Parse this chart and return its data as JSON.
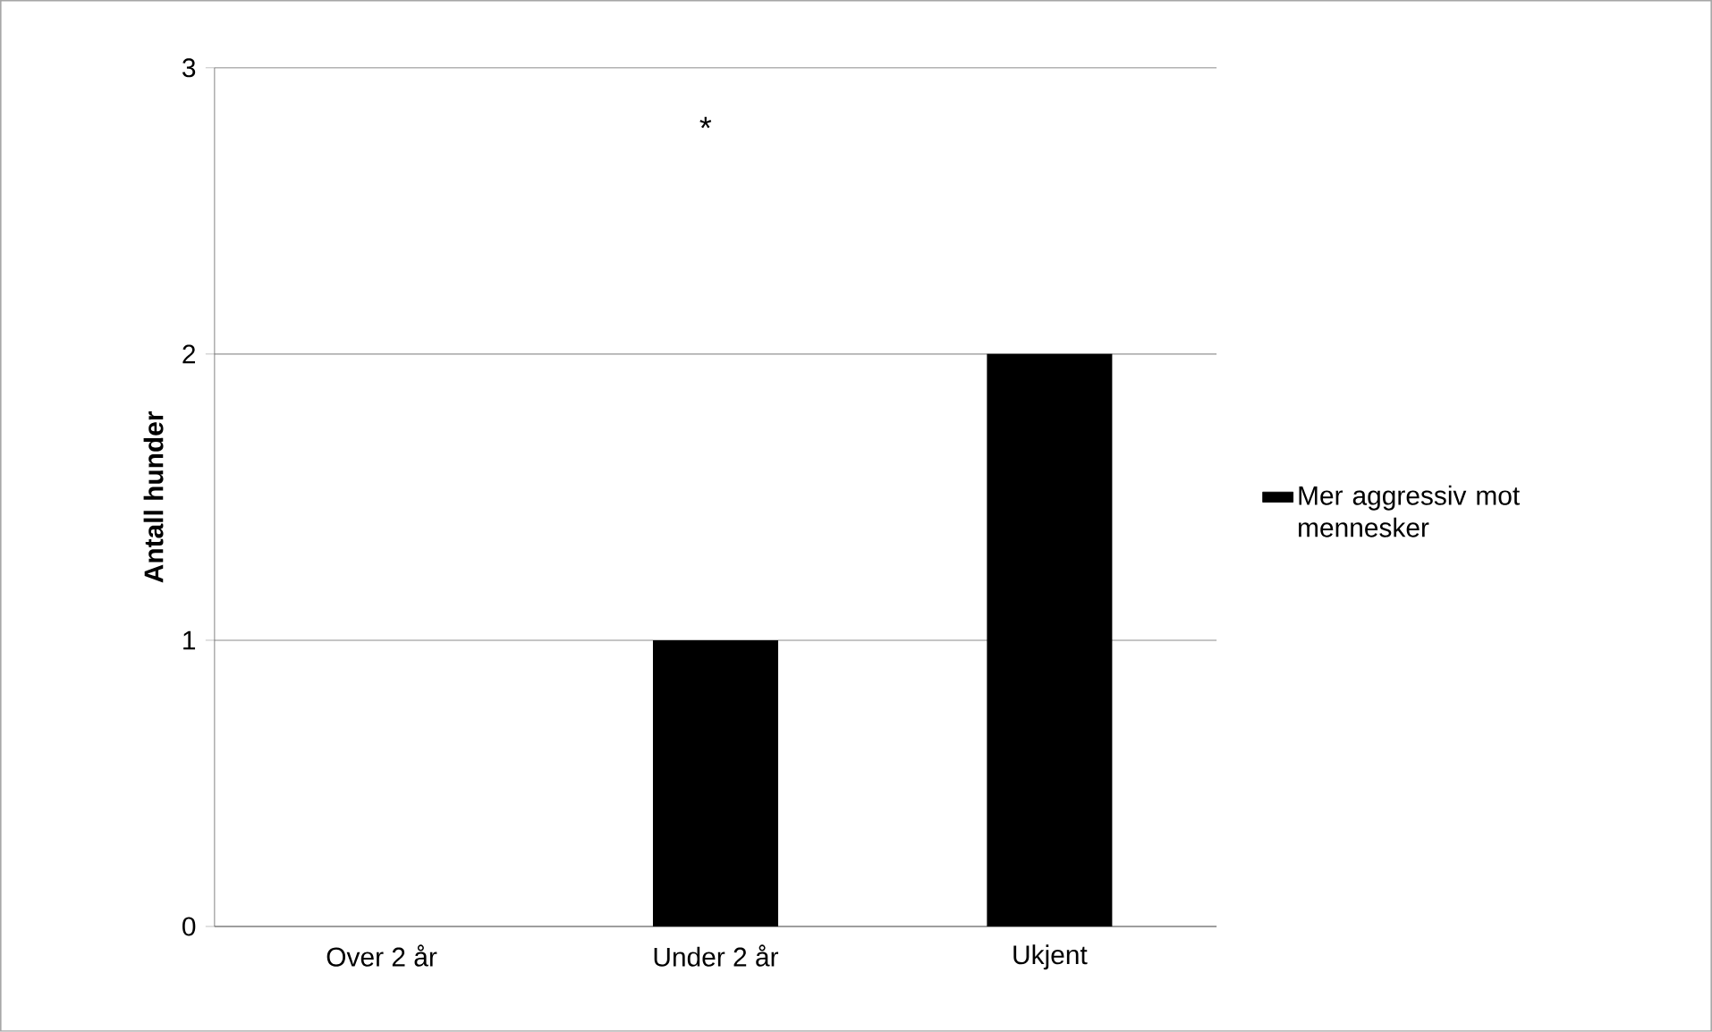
{
  "chart_data": {
    "type": "bar",
    "categories": [
      "Over 2 år",
      "Under 2 år",
      "Ukjent"
    ],
    "series": [
      {
        "name": "Mer aggressiv mot mennesker",
        "color": "#000000",
        "values": [
          0,
          1,
          2
        ]
      }
    ],
    "ylabel": "Antall hunder",
    "ylim": [
      0,
      3
    ],
    "yticks": [
      0,
      1,
      2,
      3
    ],
    "grid": "y",
    "legend": "right",
    "annotations": [
      "*"
    ]
  }
}
